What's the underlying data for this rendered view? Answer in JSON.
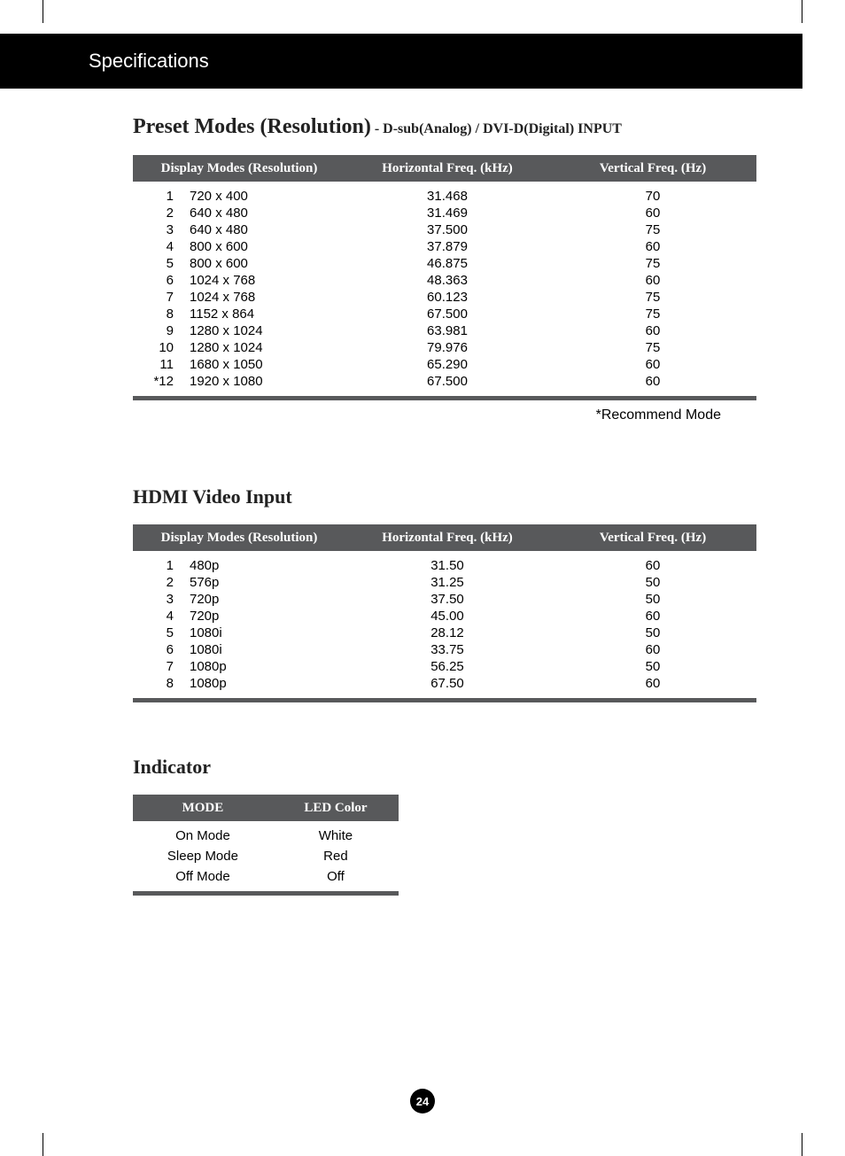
{
  "header": {
    "title": "Specifications"
  },
  "section1": {
    "title_main": "Preset Modes (Resolution)",
    "title_sub": " - D-sub(Analog) / DVI-D(Digital) INPUT",
    "columns": [
      "Display Modes (Resolution)",
      "Horizontal Freq. (kHz)",
      "Vertical Freq. (Hz)"
    ],
    "rows": [
      {
        "idx": "1",
        "res": "720 x 400",
        "hf": "31.468",
        "vf": "70"
      },
      {
        "idx": "2",
        "res": "640 x 480",
        "hf": "31.469",
        "vf": "60"
      },
      {
        "idx": "3",
        "res": "640 x 480",
        "hf": "37.500",
        "vf": "75"
      },
      {
        "idx": "4",
        "res": "800 x 600",
        "hf": "37.879",
        "vf": "60"
      },
      {
        "idx": "5",
        "res": "800 x 600",
        "hf": "46.875",
        "vf": "75"
      },
      {
        "idx": "6",
        "res": "1024 x 768",
        "hf": "48.363",
        "vf": "60"
      },
      {
        "idx": "7",
        "res": "1024 x 768",
        "hf": "60.123",
        "vf": "75"
      },
      {
        "idx": "8",
        "res": "1152 x 864",
        "hf": "67.500",
        "vf": "75"
      },
      {
        "idx": "9",
        "res": "1280 x 1024",
        "hf": "63.981",
        "vf": "60"
      },
      {
        "idx": "10",
        "res": "1280 x 1024",
        "hf": "79.976",
        "vf": "75"
      },
      {
        "idx": "11",
        "res": "1680 x 1050",
        "hf": "65.290",
        "vf": "60"
      },
      {
        "idx": "*12",
        "res": "1920 x 1080",
        "hf": "67.500",
        "vf": "60"
      }
    ],
    "note": "*Recommend Mode",
    "header_bg": "#58595b",
    "header_fg": "#ffffff",
    "border_bottom_color": "#58595b"
  },
  "section2": {
    "title": "HDMI Video Input",
    "columns": [
      "Display Modes (Resolution)",
      "Horizontal Freq. (kHz)",
      "Vertical Freq. (Hz)"
    ],
    "rows": [
      {
        "idx": "1",
        "res": "480p",
        "hf": "31.50",
        "vf": "60"
      },
      {
        "idx": "2",
        "res": "576p",
        "hf": "31.25",
        "vf": "50"
      },
      {
        "idx": "3",
        "res": "720p",
        "hf": "37.50",
        "vf": "50"
      },
      {
        "idx": "4",
        "res": "720p",
        "hf": "45.00",
        "vf": "60"
      },
      {
        "idx": "5",
        "res": "1080i",
        "hf": "28.12",
        "vf": "50"
      },
      {
        "idx": "6",
        "res": "1080i",
        "hf": "33.75",
        "vf": "60"
      },
      {
        "idx": "7",
        "res": "1080p",
        "hf": "56.25",
        "vf": "50"
      },
      {
        "idx": "8",
        "res": "1080p",
        "hf": "67.50",
        "vf": "60"
      }
    ]
  },
  "section3": {
    "title": "Indicator",
    "columns": [
      "MODE",
      "LED Color"
    ],
    "rows": [
      {
        "mode": "On Mode",
        "color": "White"
      },
      {
        "mode": "Sleep Mode",
        "color": "Red"
      },
      {
        "mode": "Off Mode",
        "color": "Off"
      }
    ]
  },
  "page_number": "24",
  "colors": {
    "black": "#000000",
    "white": "#ffffff",
    "table_header_bg": "#58595b"
  }
}
